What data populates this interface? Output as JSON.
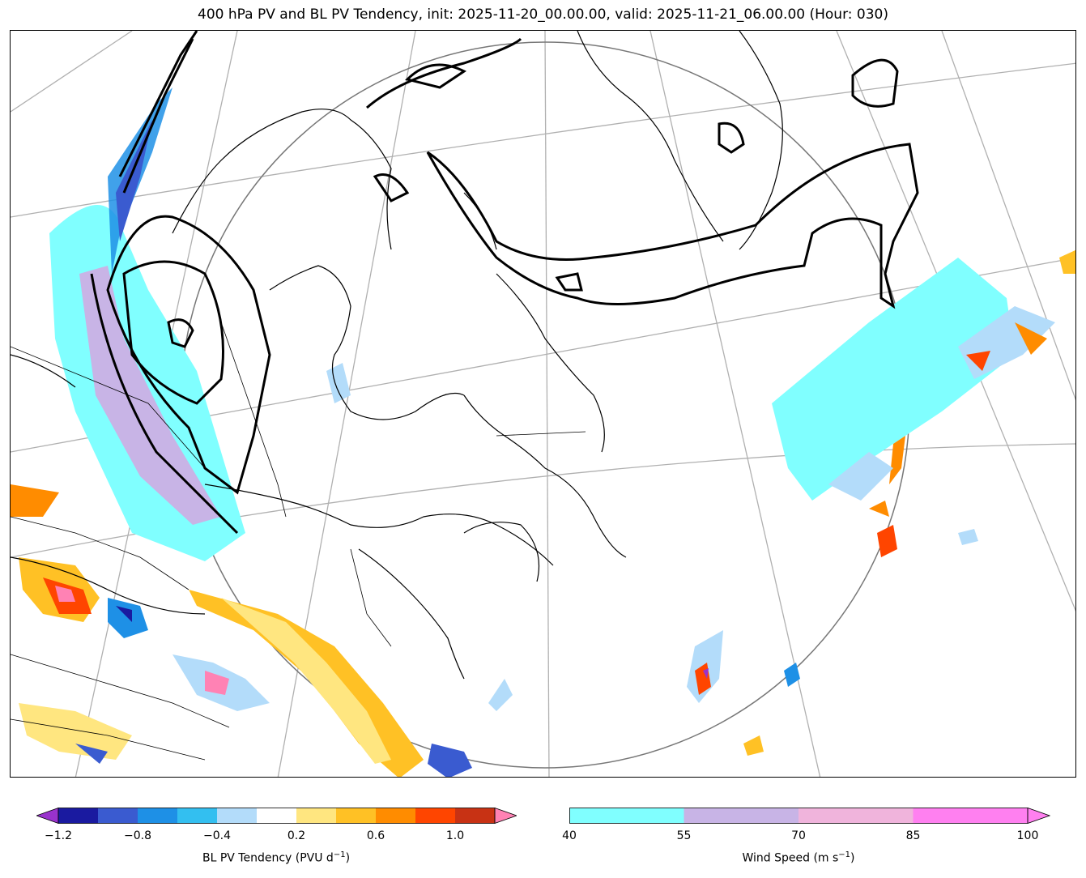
{
  "title": "400 hPa PV and BL PV Tendency, init: 2025-11-20_00.00.00, valid: 2025-11-21_06.00.00 (Hour: 030)",
  "map_layers": {
    "filled_1": "BL PV Tendency",
    "filled_2": "Wind Speed",
    "contour": "400 hPa PV"
  },
  "colorbar_left": {
    "label_main": "BL PV Tendency (PVU d",
    "label_exp": "−1",
    "label_end": ")",
    "ticks": [
      "−1.2",
      "−0.8",
      "−0.4",
      "0.2",
      "0.6",
      "1.0"
    ],
    "colors": [
      "#9932cc",
      "#1a1aa0",
      "#3a5bd0",
      "#1e90e6",
      "#33bff0",
      "#b3dcfa",
      "#ffffff",
      "#ffe680",
      "#ffc125",
      "#ff8c00",
      "#ff4500",
      "#c83214",
      "#ff82b4"
    ]
  },
  "colorbar_right": {
    "label_main": "Wind Speed (m s",
    "label_exp": "−1",
    "label_end": ")",
    "ticks": [
      "40",
      "55",
      "70",
      "85",
      "100"
    ],
    "colors": [
      "#80ffff",
      "#c8b4e6",
      "#f0b4dc",
      "#ff80f0"
    ]
  }
}
